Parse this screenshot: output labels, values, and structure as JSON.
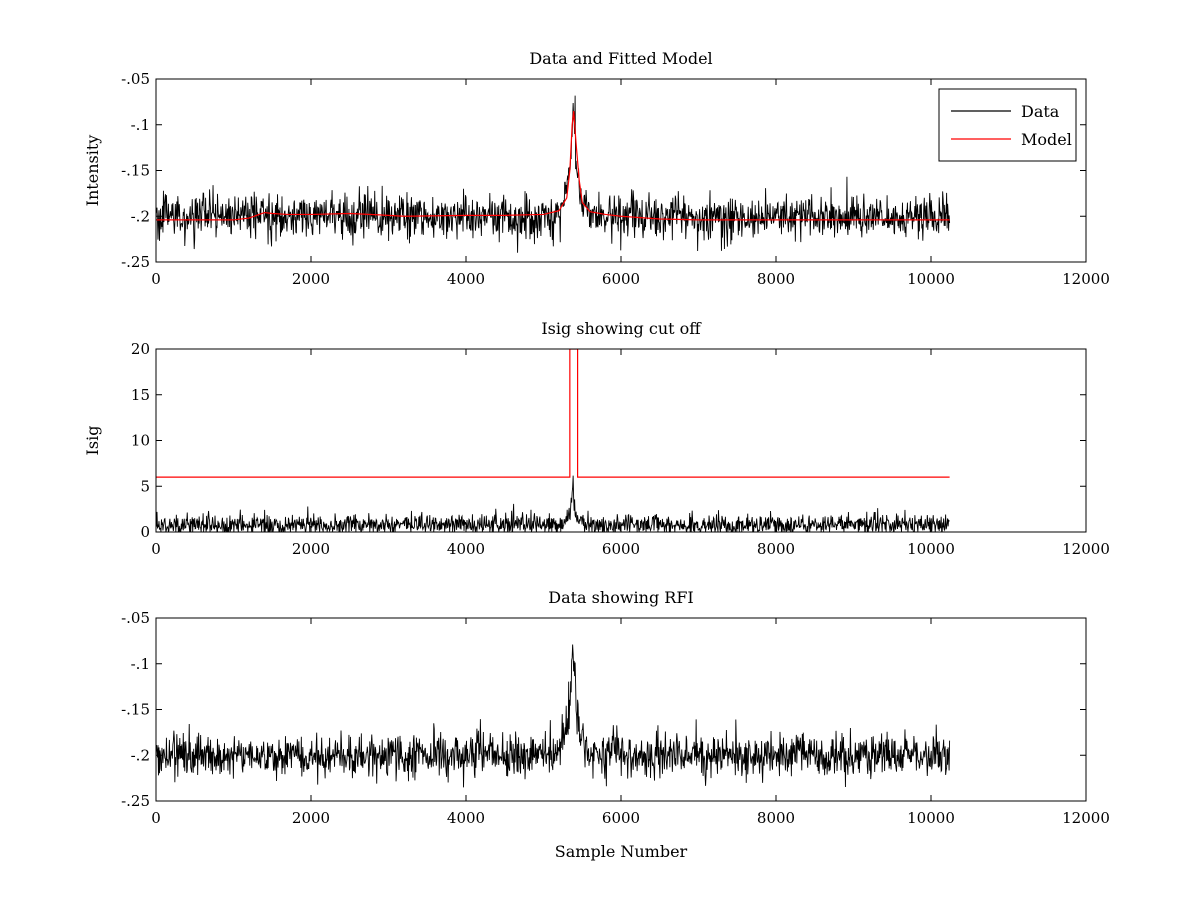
{
  "chart_data": [
    {
      "type": "line",
      "title": "Data and Fitted Model",
      "xlabel": "",
      "ylabel": "Intensity",
      "xlim": [
        0,
        12000
      ],
      "ylim": [
        -0.25,
        -0.05
      ],
      "y_reversed": true,
      "xticks": [
        0,
        2000,
        4000,
        6000,
        8000,
        10000,
        12000
      ],
      "yticks": [
        -0.05,
        -0.1,
        -0.15,
        -0.2,
        -0.25
      ],
      "legend_position": "top-right",
      "series": [
        {
          "name": "Data",
          "color": "#000000",
          "kind": "noise",
          "x_range": [
            0,
            10240
          ],
          "baseline": -0.2,
          "noise_sd": 0.012,
          "peak": {
            "center": 5380,
            "value": -0.07,
            "width": 60
          },
          "samples": 1600
        },
        {
          "name": "Model",
          "color": "#ff0000",
          "kind": "polyline",
          "x": [
            0,
            1000,
            1200,
            1400,
            1500,
            1700,
            2000,
            2500,
            3000,
            3200,
            4000,
            4500,
            5000,
            5200,
            5300,
            5340,
            5370,
            5390,
            5420,
            5460,
            5500,
            5600,
            5800,
            6000,
            6500,
            7000,
            8000,
            9000,
            10240
          ],
          "y": [
            -0.204,
            -0.204,
            -0.202,
            -0.196,
            -0.197,
            -0.198,
            -0.198,
            -0.197,
            -0.199,
            -0.2,
            -0.199,
            -0.199,
            -0.198,
            -0.194,
            -0.18,
            -0.15,
            -0.1,
            -0.085,
            -0.12,
            -0.16,
            -0.185,
            -0.195,
            -0.198,
            -0.2,
            -0.203,
            -0.204,
            -0.204,
            -0.204,
            -0.204
          ]
        }
      ]
    },
    {
      "type": "line",
      "title": "Isig showing cut off",
      "xlabel": "",
      "ylabel": "Isig",
      "xlim": [
        0,
        12000
      ],
      "ylim": [
        0,
        20
      ],
      "y_reversed": false,
      "xticks": [
        0,
        2000,
        4000,
        6000,
        8000,
        10000,
        12000
      ],
      "yticks": [
        0,
        5,
        10,
        15,
        20
      ],
      "series": [
        {
          "color": "#000000",
          "kind": "noise",
          "x_range": [
            0,
            10240
          ],
          "baseline": 0.8,
          "noise_sd": 0.6,
          "min_value": 0,
          "peak": {
            "center": 5380,
            "value": 6.2,
            "width": 30
          },
          "samples": 1600
        },
        {
          "color": "#ff0000",
          "kind": "polyline",
          "x": [
            0,
            5340,
            5340,
            5440,
            5440,
            10240
          ],
          "y": [
            6,
            6,
            20,
            20,
            6,
            6
          ]
        }
      ]
    },
    {
      "type": "line",
      "title": "Data showing RFI",
      "xlabel": "Sample Number",
      "ylabel": "",
      "xlim": [
        0,
        12000
      ],
      "ylim": [
        -0.25,
        -0.05
      ],
      "y_reversed": true,
      "xticks": [
        0,
        2000,
        4000,
        6000,
        8000,
        10000,
        12000
      ],
      "yticks": [
        -0.05,
        -0.1,
        -0.15,
        -0.2,
        -0.25
      ],
      "series": [
        {
          "color": "#000000",
          "kind": "noise",
          "x_range": [
            0,
            10240
          ],
          "baseline": -0.2,
          "noise_sd": 0.012,
          "peak": {
            "center": 5380,
            "value": -0.065,
            "width": 60
          },
          "samples": 1600
        }
      ]
    }
  ]
}
